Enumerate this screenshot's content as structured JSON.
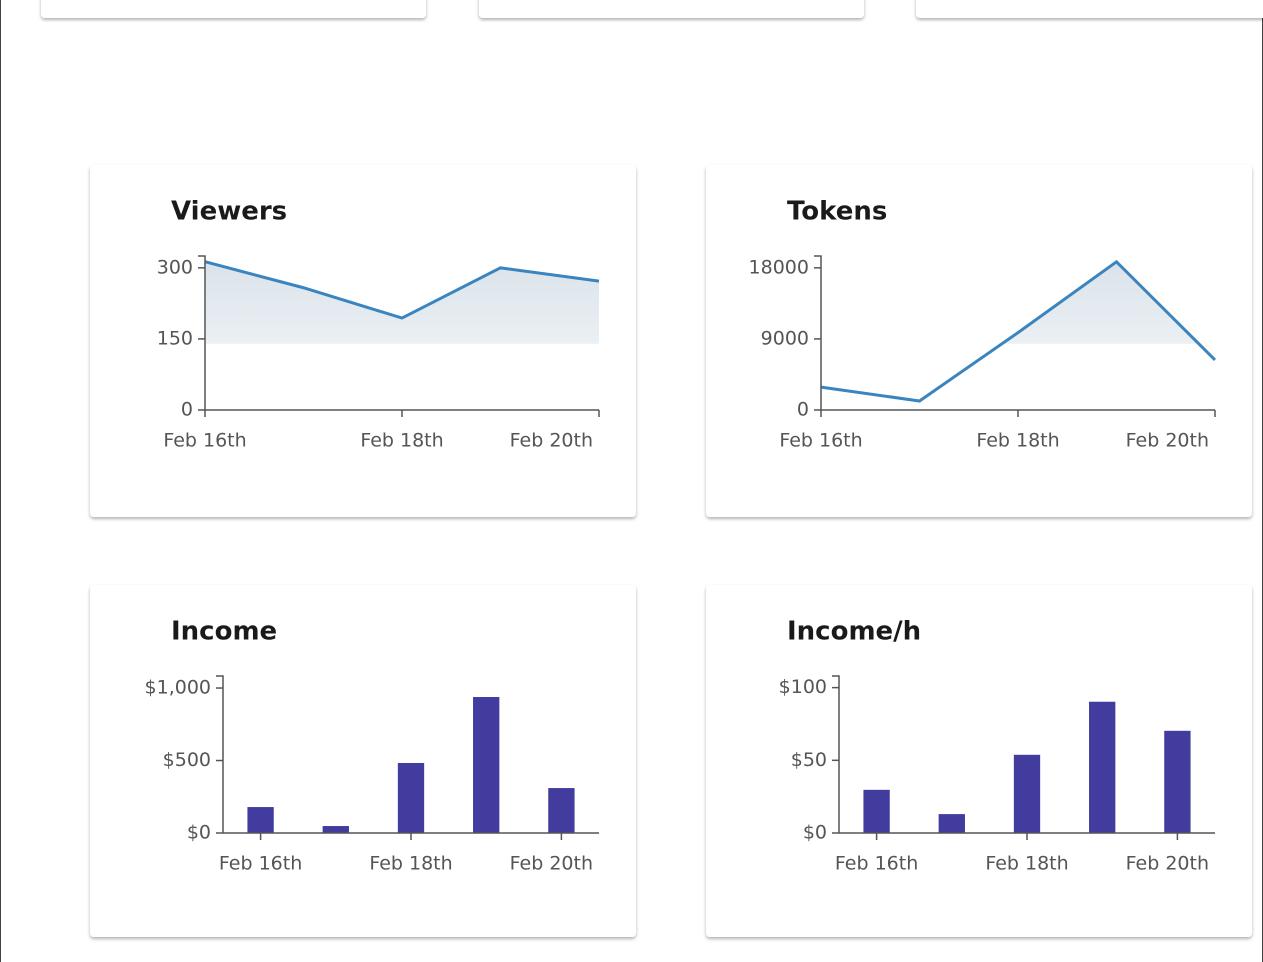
{
  "chart_data": [
    {
      "type": "line",
      "title": "Viewers",
      "color": "#3a85bf",
      "categories": [
        "Feb 16th",
        null,
        "Feb 18th",
        null,
        "Feb 20th"
      ],
      "values": [
        313,
        258,
        194,
        300,
        272
      ],
      "ylim": [
        0,
        325
      ],
      "yticks": [
        0,
        150,
        300
      ]
    },
    {
      "type": "line",
      "title": "Tokens",
      "color": "#3a85bf",
      "categories": [
        "Feb 16th",
        null,
        "Feb 18th",
        null,
        "Feb 20th"
      ],
      "values": [
        2900,
        1140,
        9800,
        18760,
        6340
      ],
      "ylim": [
        0,
        19500
      ],
      "yticks": [
        0,
        9000,
        18000
      ]
    },
    {
      "type": "bar",
      "title": "Income",
      "color": "#423c9e",
      "categories": [
        "Feb 16th",
        null,
        "Feb 18th",
        null,
        "Feb 20th"
      ],
      "values": [
        179,
        48,
        483,
        938,
        310
      ],
      "ylim": [
        0,
        1083
      ],
      "yticks": [
        {
          "value": 0,
          "label": "$0"
        },
        {
          "value": 500,
          "label": "$500"
        },
        {
          "value": 1000,
          "label": "$1,000"
        }
      ]
    },
    {
      "type": "bar",
      "title": "Income/h",
      "color": "#423c9e",
      "categories": [
        "Feb 16th",
        null,
        "Feb 18th",
        null,
        "Feb 20th"
      ],
      "values": [
        29.7,
        13,
        53.8,
        90.3,
        70.3
      ],
      "ylim": [
        0,
        108
      ],
      "yticks": [
        {
          "value": 0,
          "label": "$0"
        },
        {
          "value": 50,
          "label": "$50"
        },
        {
          "value": 100,
          "label": "$100"
        }
      ]
    }
  ]
}
